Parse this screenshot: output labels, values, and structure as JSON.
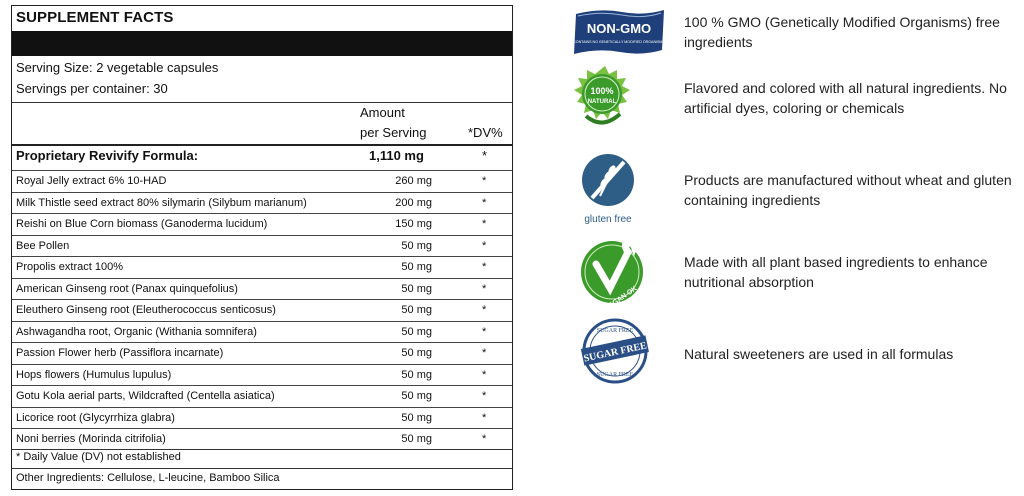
{
  "facts": {
    "title": "SUPPLEMENT FACTS",
    "serving_size": "Serving Size: 2 vegetable capsules",
    "servings_per_container": "Servings per container: 30",
    "amount_header_1": "Amount",
    "amount_header_2": "per Serving",
    "dv_header": "*DV%",
    "proprietary": {
      "name": "Proprietary Revivify Formula:",
      "amount": "1,110 mg",
      "dv": "*"
    },
    "ingredients": [
      {
        "name": "Royal Jelly extract 6% 10-HAD",
        "amount": "260 mg",
        "dv": "*"
      },
      {
        "name": "Milk Thistle seed extract 80% silymarin (Silybum marianum)",
        "amount": "200 mg",
        "dv": "*"
      },
      {
        "name": "Reishi on Blue Corn biomass (Ganoderma lucidum)",
        "amount": "150 mg",
        "dv": "*"
      },
      {
        "name": "Bee Pollen",
        "amount": "50 mg",
        "dv": "*"
      },
      {
        "name": "Propolis extract 100%",
        "amount": "50 mg",
        "dv": "*"
      },
      {
        "name": "American Ginseng root (Panax quinquefolius)",
        "amount": "50 mg",
        "dv": "*"
      },
      {
        "name": "Eleuthero Ginseng root (Eleutherococcus senticosus)",
        "amount": "50 mg",
        "dv": "*"
      },
      {
        "name": "Ashwagandha root, Organic (Withania somnifera)",
        "amount": "50 mg",
        "dv": "*"
      },
      {
        "name": "Passion Flower herb (Passiflora incarnate)",
        "amount": "50 mg",
        "dv": "*"
      },
      {
        "name": "Hops flowers (Humulus lupulus)",
        "amount": "50 mg",
        "dv": "*"
      },
      {
        "name": "Gotu Kola aerial parts, Wildcrafted (Centella asiatica)",
        "amount": "50 mg",
        "dv": "*"
      },
      {
        "name": "Licorice root (Glycyrrhiza glabra)",
        "amount": "50 mg",
        "dv": "*"
      },
      {
        "name": "Noni berries (Morinda citrifolia)",
        "amount": "50 mg",
        "dv": "*"
      }
    ],
    "dv_note": "* Daily Value (DV) not established",
    "other_ingredients": "Other Ingredients: Cellulose, L-leucine, Bamboo Silica"
  },
  "features": [
    {
      "icon": "non-gmo-icon",
      "badge": "NON-GMO",
      "badge_small": "CONTAINS NO GENETICALLY MODIFIED ORGANISMS",
      "text": "100 % GMO (Genetically Modified Organisms) free ingredients"
    },
    {
      "icon": "natural-icon",
      "badge": "100% NATURAL",
      "text": "Flavored and colored with all natural ingredients.  No artificial dyes, coloring or chemicals"
    },
    {
      "icon": "gluten-free-icon",
      "badge": "gluten free",
      "text": "Products are manufactured without wheat and gluten containing ingredients"
    },
    {
      "icon": "vegan-icon",
      "badge": "VEGAN OK",
      "text": "Made with all plant based ingredients to enhance nutritional absorption"
    },
    {
      "icon": "sugar-free-icon",
      "badge": "SUGAR FREE",
      "text": "Natural sweeteners are used in all formulas"
    }
  ],
  "colors": {
    "navy": "#1f3f7a",
    "green": "#3a9a2a",
    "dark_green": "#2f7d22",
    "gluten_blue": "#2e5e86",
    "text": "#222222"
  }
}
